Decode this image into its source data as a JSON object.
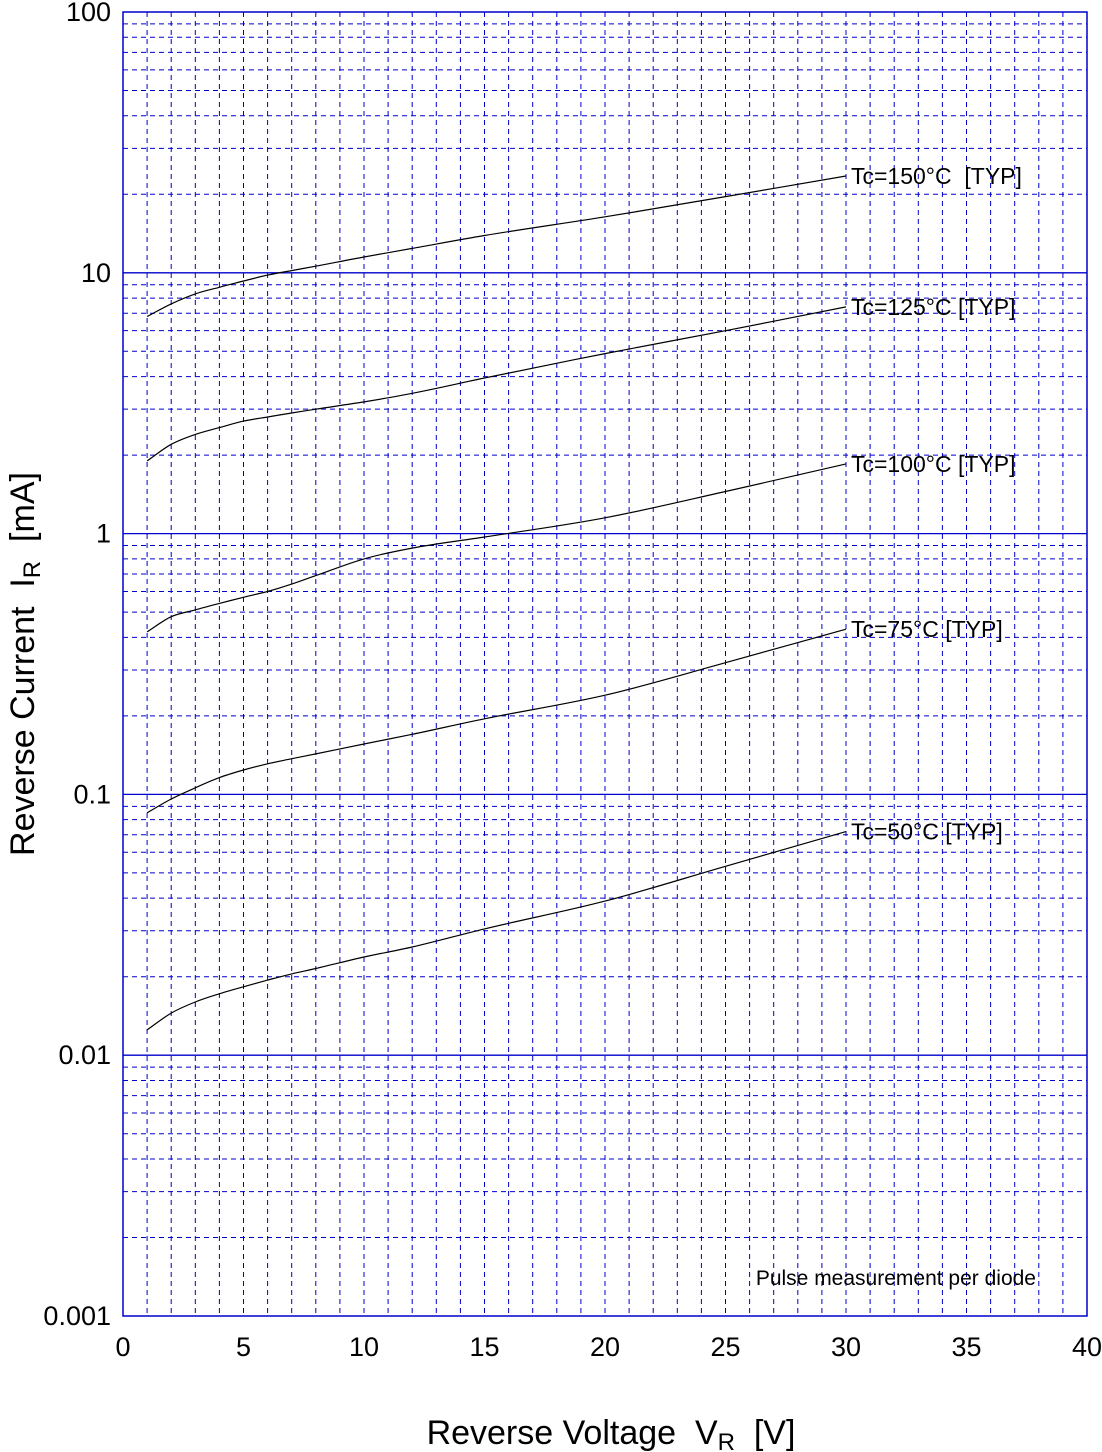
{
  "chart_data": {
    "type": "line",
    "xlabel": "Reverse Voltage  V",
    "xlabel_subscript": "R",
    "xlabel_unit": "  [V]",
    "ylabel": "Reverse Current  I",
    "ylabel_subscript": "R",
    "ylabel_unit": "  [mA]",
    "xlim": [
      0,
      40
    ],
    "ylim": [
      0.001,
      100
    ],
    "yscale": "log",
    "grid": true,
    "x_ticks": [
      "0",
      "5",
      "10",
      "15",
      "20",
      "25",
      "30",
      "35",
      "40"
    ],
    "y_ticks": [
      "0.001",
      "0.01",
      "0.1",
      "1",
      "10",
      "100"
    ],
    "annotation": "Pulse measurement per diode",
    "colors": {
      "grid": "#0000cc",
      "curve": "#000000",
      "decade_line": "#0000cc"
    },
    "series": [
      {
        "name": "Tc=150°C  [TYP]",
        "x": [
          1,
          2,
          3,
          4,
          5,
          6,
          7,
          8,
          10,
          12,
          15,
          20,
          25,
          30
        ],
        "y": [
          6.8,
          7.6,
          8.3,
          8.8,
          9.3,
          9.8,
          10.2,
          10.6,
          11.5,
          12.4,
          13.9,
          16.4,
          19.6,
          23.5
        ]
      },
      {
        "name": "Tc=125°C [TYP]",
        "x": [
          1,
          2,
          3,
          4,
          5,
          6,
          7,
          8,
          10,
          12,
          15,
          20,
          25,
          30
        ],
        "y": [
          1.9,
          2.2,
          2.4,
          2.55,
          2.7,
          2.8,
          2.9,
          3.0,
          3.2,
          3.45,
          3.95,
          4.9,
          6.0,
          7.4
        ]
      },
      {
        "name": "Tc=100°C [TYP]",
        "x": [
          1,
          2,
          3,
          4,
          5,
          6,
          7,
          8,
          10,
          12,
          15,
          20,
          25,
          30
        ],
        "y": [
          0.42,
          0.48,
          0.51,
          0.54,
          0.57,
          0.6,
          0.64,
          0.69,
          0.8,
          0.88,
          0.97,
          1.15,
          1.45,
          1.85
        ]
      },
      {
        "name": "Tc=75°C [TYP]",
        "x": [
          1,
          2,
          3,
          4,
          5,
          6,
          7,
          8,
          10,
          12,
          15,
          20,
          25,
          30
        ],
        "y": [
          0.085,
          0.096,
          0.106,
          0.116,
          0.124,
          0.131,
          0.137,
          0.143,
          0.156,
          0.17,
          0.195,
          0.24,
          0.32,
          0.43
        ]
      },
      {
        "name": "Tc=50°C [TYP]",
        "x": [
          1,
          2,
          3,
          4,
          5,
          6,
          7,
          8,
          10,
          12,
          15,
          20,
          25,
          30
        ],
        "y": [
          0.0125,
          0.0145,
          0.016,
          0.0172,
          0.0183,
          0.0194,
          0.0205,
          0.0215,
          0.0238,
          0.026,
          0.0305,
          0.039,
          0.053,
          0.072
        ]
      }
    ]
  }
}
